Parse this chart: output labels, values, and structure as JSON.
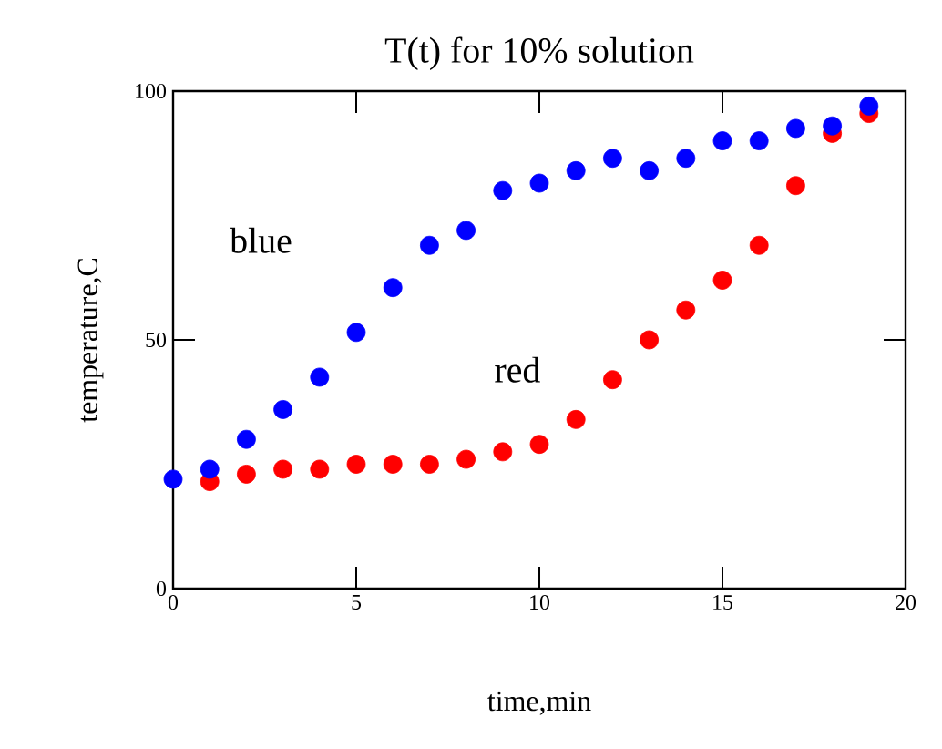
{
  "chart_data": {
    "type": "scatter",
    "title": "T(t) for 10% solution",
    "xlabel": "time,min",
    "ylabel": "temperature,C",
    "x": [
      0,
      1,
      2,
      3,
      4,
      5,
      6,
      7,
      8,
      9,
      10,
      11,
      12,
      13,
      14,
      15,
      16,
      17,
      18,
      19
    ],
    "series": [
      {
        "name": "blue",
        "color": "#0000ff",
        "values": [
          22,
          24,
          30,
          36,
          42.5,
          51.5,
          60.5,
          69,
          72,
          80,
          81.5,
          84,
          86.5,
          84,
          86.5,
          90,
          90,
          92.5,
          93,
          97
        ]
      },
      {
        "name": "red",
        "color": "#ff0000",
        "values": [
          null,
          21.5,
          23,
          24,
          24,
          25,
          25,
          25,
          26,
          27.5,
          29,
          34,
          42,
          50,
          56,
          62,
          69,
          81,
          91.5,
          95.5
        ]
      }
    ],
    "xlim": [
      0,
      20
    ],
    "ylim": [
      0,
      100
    ],
    "xticks": [
      0,
      5,
      10,
      15,
      20
    ],
    "yticks": [
      0,
      50,
      100
    ],
    "grid": false,
    "legend": false,
    "marker": "circle"
  }
}
